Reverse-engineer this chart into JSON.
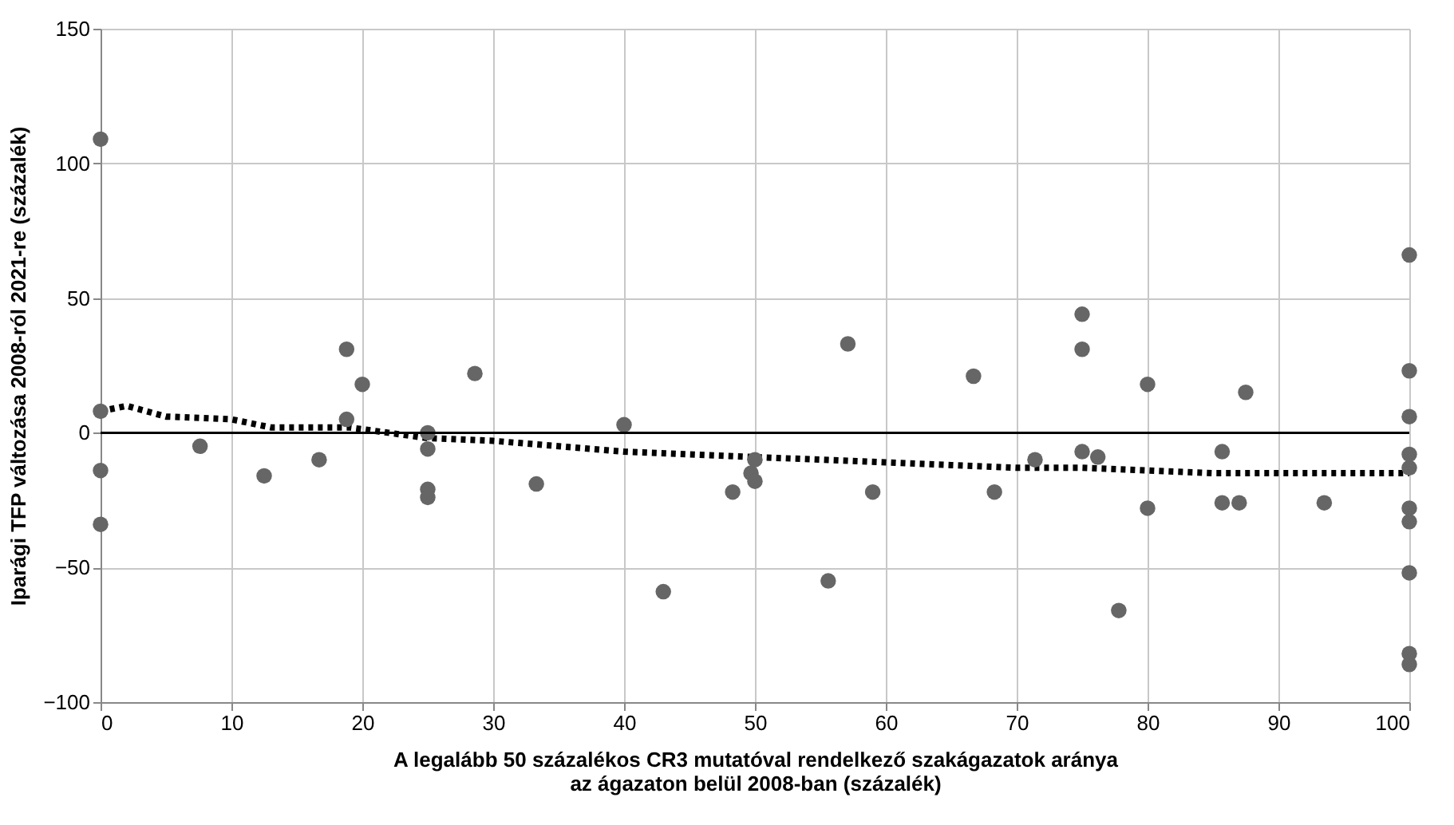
{
  "chart_data": {
    "type": "scatter",
    "xlabel": "A legalább 50 százalékos CR3 mutatóval rendelkező szakágazatok aránya\naz ágazaton belül 2008-ban (százalék)",
    "ylabel": "Iparági TFP változása 2008-ról 2021-re (százalék)",
    "xlim": [
      0,
      100
    ],
    "xticks": [
      0,
      10,
      20,
      30,
      40,
      50,
      60,
      70,
      80,
      90,
      100
    ],
    "ylim": [
      -100,
      150
    ],
    "yticks": [
      {
        "value": -100,
        "label": "−100"
      },
      {
        "value": -50,
        "label": "−50"
      },
      0,
      50,
      100,
      150
    ],
    "grid": true,
    "marker": "circle",
    "ref_lines": [
      {
        "axis": "y",
        "value": 0,
        "color": "#000000",
        "line_style": "solid"
      }
    ],
    "series": [
      {
        "color": "#666666",
        "x": [
          0,
          0,
          0,
          0,
          7.6,
          12.5,
          16.7,
          18.8,
          18.8,
          20,
          25,
          25,
          25,
          25,
          28.6,
          33.3,
          40,
          43,
          48.3,
          49.7,
          50,
          50,
          55.6,
          57.1,
          59,
          66.7,
          68.3,
          71.4,
          75,
          75,
          75,
          76.2,
          77.8,
          80,
          80,
          85.7,
          85.7,
          87,
          87.5,
          93.5,
          100,
          100,
          100,
          100,
          100,
          100,
          100,
          100,
          100,
          100
        ],
        "values": [
          109,
          8,
          -14,
          -34,
          -5,
          -16,
          -10,
          31,
          5,
          18,
          0,
          -6,
          -21,
          -24,
          22,
          -19,
          3,
          -59,
          -22,
          -15,
          -10,
          -18,
          -55,
          33,
          -22,
          21,
          -22,
          -10,
          44,
          31,
          -7,
          -9,
          -66,
          18,
          -28,
          -7,
          -26,
          -26,
          15,
          -26,
          66,
          23,
          6,
          -8,
          -13,
          -28,
          -33,
          -52,
          -82,
          -86
        ]
      },
      {
        "type": "line",
        "color": "#000000",
        "line_style": "dotted",
        "marker": "none",
        "x": [
          0,
          2,
          5,
          10,
          13,
          17,
          19,
          22,
          25,
          30,
          35,
          40,
          45,
          50,
          55,
          60,
          65,
          70,
          75,
          80,
          85,
          90,
          95,
          100
        ],
        "values": [
          8,
          10,
          6,
          5,
          2,
          2,
          2,
          0,
          -2,
          -3,
          -5,
          -7,
          -8,
          -9,
          -10,
          -11,
          -12,
          -13,
          -13,
          -14,
          -15,
          -15,
          -15,
          -15
        ]
      }
    ]
  }
}
